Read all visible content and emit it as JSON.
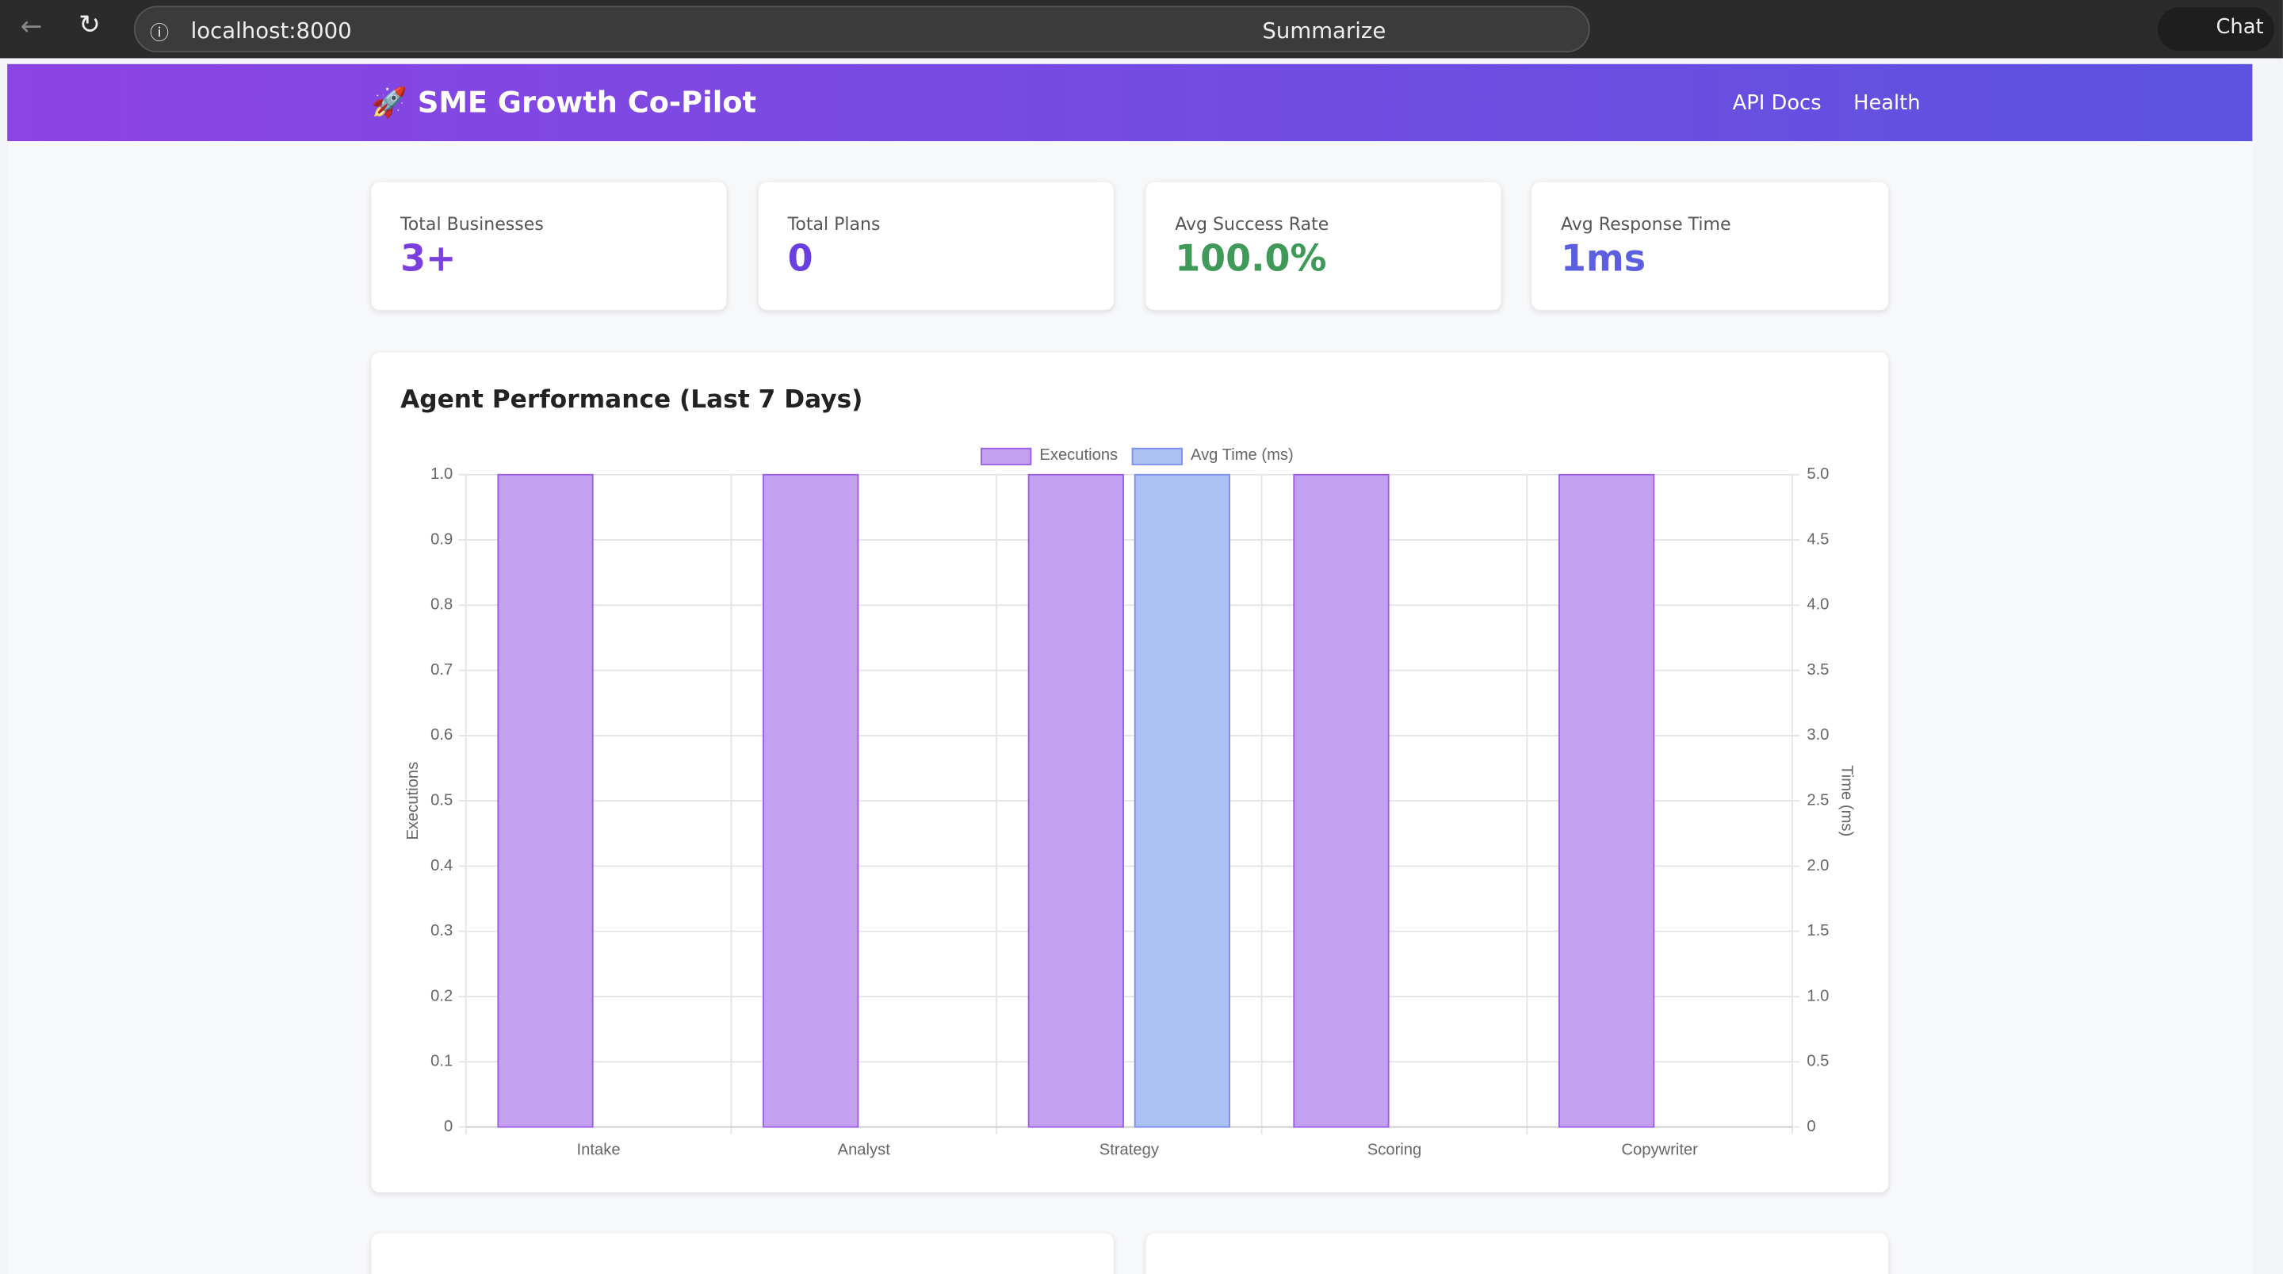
{
  "browser": {
    "url": "localhost:8000",
    "summarize": "Summarize",
    "chat": "Chat"
  },
  "header": {
    "icon": "🚀",
    "title": "SME Growth Co-Pilot",
    "nav": [
      "API Docs",
      "Health"
    ]
  },
  "stats": [
    {
      "label": "Total Businesses",
      "value": "3+"
    },
    {
      "label": "Total Plans",
      "value": "0"
    },
    {
      "label": "Avg Success Rate",
      "value": "100.0%"
    },
    {
      "label": "Avg Response Time",
      "value": "1ms"
    }
  ],
  "chart_data": {
    "type": "bar",
    "title": "Agent Performance (Last 7 Days)",
    "categories": [
      "Intake",
      "Analyst",
      "Strategy",
      "Scoring",
      "Copywriter"
    ],
    "series": [
      {
        "name": "Executions",
        "color": "#c3a0f0",
        "border": "#9b5de5",
        "values": [
          1,
          1,
          1,
          1,
          1
        ]
      },
      {
        "name": "Avg Time (ms)",
        "color": "#abc0f3",
        "border": "#7b8ef0",
        "axis": "y2",
        "values": [
          0,
          0,
          5,
          0,
          0
        ]
      }
    ],
    "ylabel": "Executions",
    "y2label": "Time (ms)",
    "ylim": [
      0,
      1
    ],
    "yticks": [
      0,
      0.1,
      0.2,
      0.3,
      0.4,
      0.5,
      0.6,
      0.7,
      0.8,
      0.9,
      {
        "value": 1,
        "label": "1.0"
      }
    ],
    "y2lim": [
      0,
      5
    ],
    "y2ticks": [
      0,
      0.5,
      {
        "value": 1,
        "label": "1.0"
      },
      1.5,
      {
        "value": 2,
        "label": "2.0"
      },
      2.5,
      {
        "value": 3,
        "label": "3.0"
      },
      3.5,
      {
        "value": 4,
        "label": "4.0"
      },
      4.5,
      {
        "value": 5,
        "label": "5.0"
      }
    ],
    "grid": true,
    "legend": "top"
  }
}
